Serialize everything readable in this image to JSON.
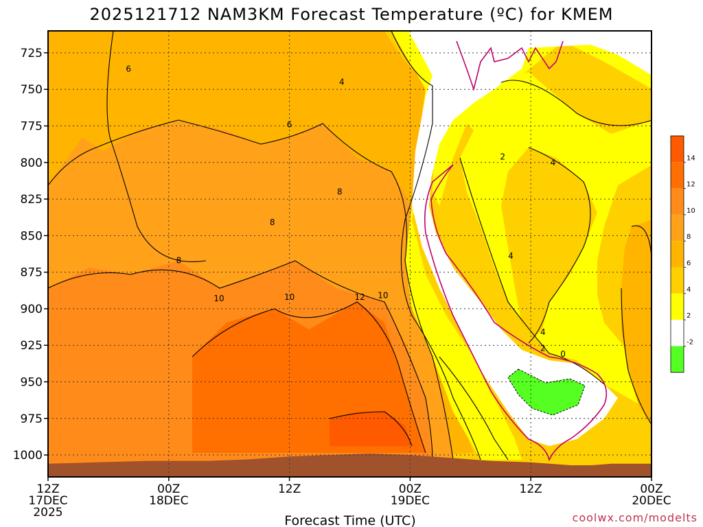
{
  "chart_data": {
    "type": "heatmap",
    "title": "2025121712 NAM3KM Forecast Temperature (ºC) for KMEM",
    "xlabel": "Forecast Time (UTC)",
    "ylabel": "",
    "credit": "coolwx.com/modelts",
    "y_ticks": [
      "725",
      "750",
      "775",
      "800",
      "825",
      "850",
      "875",
      "900",
      "925",
      "950",
      "975",
      "1000"
    ],
    "y_values": [
      725,
      750,
      775,
      800,
      825,
      850,
      875,
      900,
      925,
      950,
      975,
      1000
    ],
    "ylim": [
      710,
      1015
    ],
    "x_ticks": [
      {
        "hour": 0,
        "line1": "12Z",
        "line2": "17DEC",
        "line3": "2025"
      },
      {
        "hour": 12,
        "line1": "00Z",
        "line2": "18DEC",
        "line3": ""
      },
      {
        "hour": 24,
        "line1": "12Z",
        "line2": "",
        "line3": ""
      },
      {
        "hour": 36,
        "line1": "00Z",
        "line2": "19DEC",
        "line3": ""
      },
      {
        "hour": 48,
        "line1": "12Z",
        "line2": "",
        "line3": ""
      },
      {
        "hour": 60,
        "line1": "00Z",
        "line2": "20DEC",
        "line3": ""
      }
    ],
    "xlim": [
      0,
      60
    ],
    "grid": true,
    "colorbar": {
      "levels": [
        {
          "label": "14",
          "color": "#ff5a00"
        },
        {
          "label": "12",
          "color": "#ff7000"
        },
        {
          "label": "10",
          "color": "#ff8c1a"
        },
        {
          "label": "8",
          "color": "#ffa21a"
        },
        {
          "label": "6",
          "color": "#ffb400"
        },
        {
          "label": "4",
          "color": "#ffd000"
        },
        {
          "label": "2",
          "color": "#ffff00"
        },
        {
          "label": "-2",
          "color": "#ffffff"
        },
        {
          "label": "",
          "color": "#55ff22"
        }
      ]
    },
    "contour_labels": [
      {
        "text": "6",
        "hour": 8,
        "p": 736
      },
      {
        "text": "4",
        "hour": 29.2,
        "p": 745
      },
      {
        "text": "6",
        "hour": 24,
        "p": 774
      },
      {
        "text": "8",
        "hour": 29,
        "p": 820
      },
      {
        "text": "8",
        "hour": 22.3,
        "p": 841
      },
      {
        "text": "8",
        "hour": 13,
        "p": 867
      },
      {
        "text": "10",
        "hour": 17,
        "p": 893
      },
      {
        "text": "10",
        "hour": 24,
        "p": 892
      },
      {
        "text": "12",
        "hour": 31,
        "p": 892
      },
      {
        "text": "10",
        "hour": 33.3,
        "p": 891
      },
      {
        "text": "2",
        "hour": 45.2,
        "p": 796
      },
      {
        "text": "4",
        "hour": 50.2,
        "p": 800
      },
      {
        "text": "4",
        "hour": 46,
        "p": 864
      },
      {
        "text": "4",
        "hour": 49.2,
        "p": 916
      },
      {
        "text": "2",
        "hour": 49.2,
        "p": 927
      },
      {
        "text": "0",
        "hour": 51.2,
        "p": 931
      }
    ],
    "colors": {
      "terrain": "#a0522d",
      "zero_line": "#c0006b",
      "contour": "#000000"
    }
  }
}
